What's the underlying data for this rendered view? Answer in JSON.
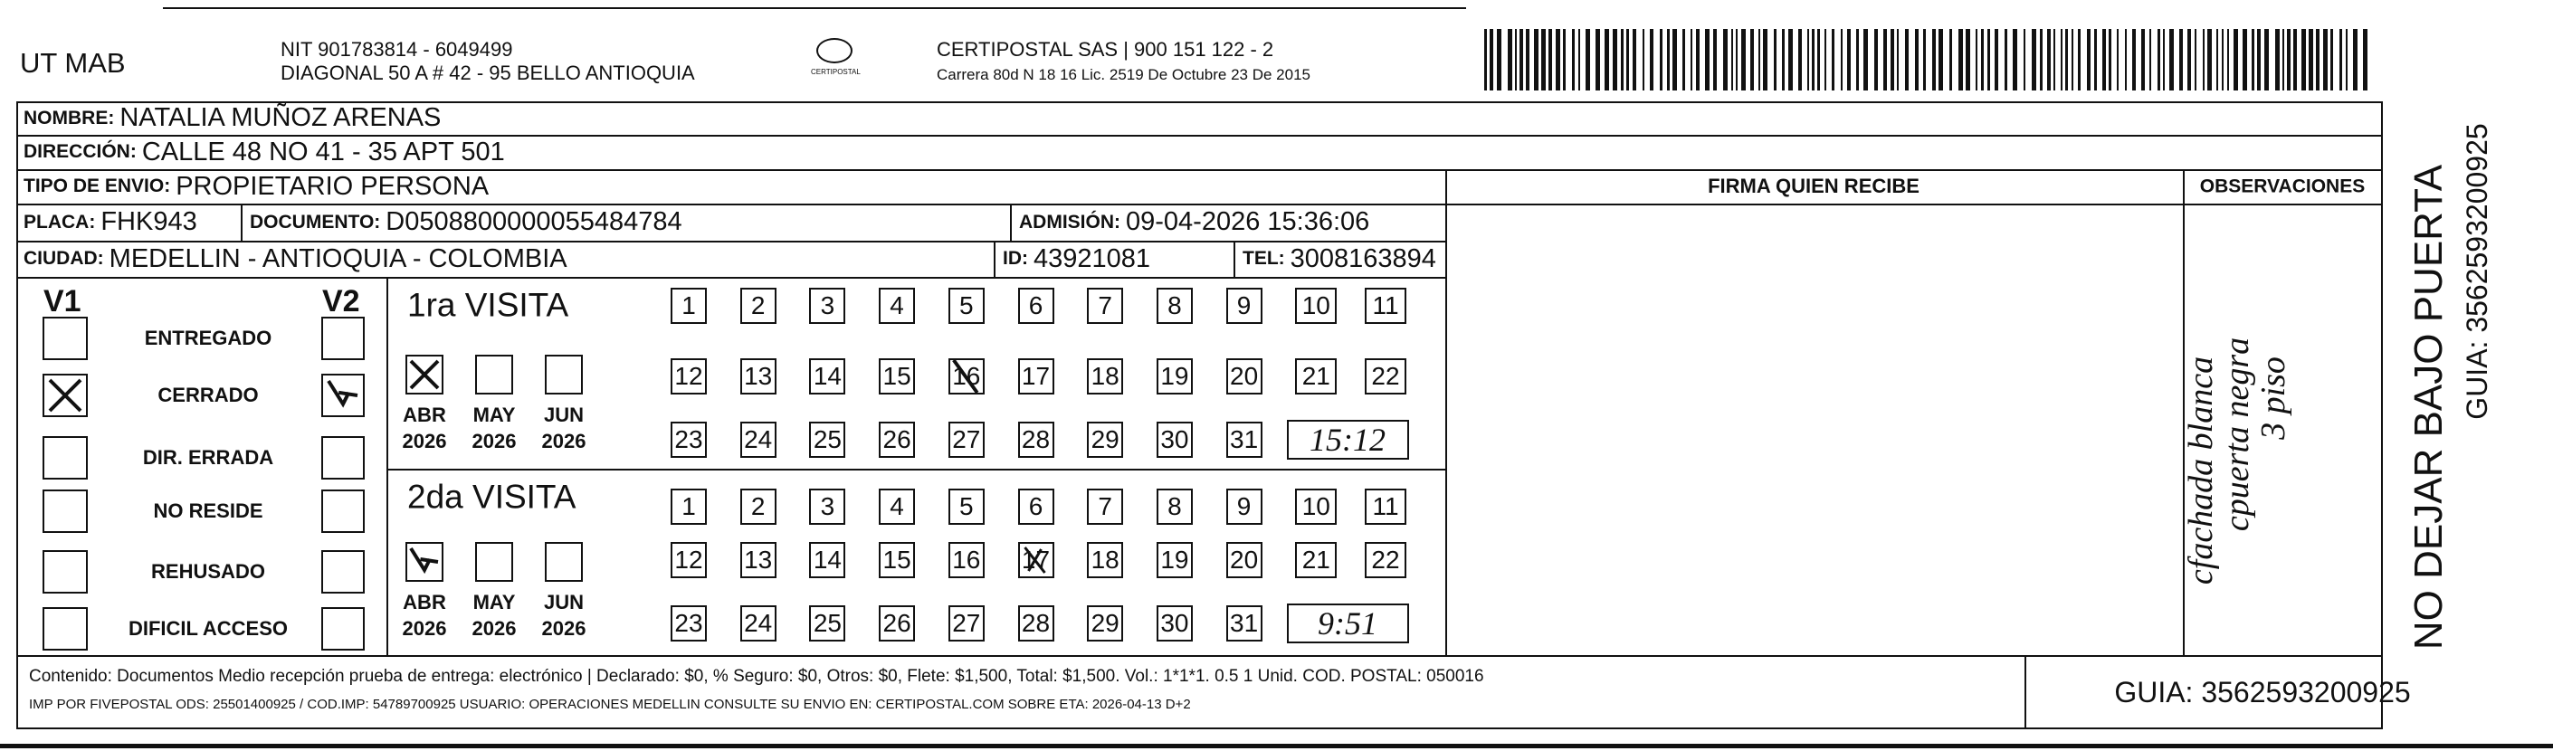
{
  "header": {
    "company": "UT MAB",
    "nit": "NIT 901783814 - 6049499",
    "address": "DIAGONAL 50 A # 42 - 95  BELLO  ANTIOQUIA",
    "logo": "CERTIPOSTAL",
    "carrier": "CERTIPOSTAL SAS | 900 151 122 - 2",
    "license": "Carrera 80d N 18 16  Lic. 2519 De Octubre 23 De 2015"
  },
  "fields": {
    "nombre": {
      "label": "NOMBRE:",
      "value": "NATALIA MUÑOZ ARENAS"
    },
    "direccion": {
      "label": "DIRECCIÓN:",
      "value": "CALLE 48 NO 41 - 35 APT 501"
    },
    "tipo": {
      "label": "TIPO DE ENVIO:",
      "value": "PROPIETARIO PERSONA"
    },
    "placa": {
      "label": "PLACA:",
      "value": "FHK943"
    },
    "documento": {
      "label": "DOCUMENTO:",
      "value": "D0508800000055484784"
    },
    "admision": {
      "label": "ADMISIÓN:",
      "value": "09-04-2026 15:36:06"
    },
    "ciudad": {
      "label": "CIUDAD:",
      "value": "MEDELLIN - ANTIOQUIA - COLOMBIA"
    },
    "id": {
      "label": "ID:",
      "value": "43921081"
    },
    "tel": {
      "label": "TEL:",
      "value": "3008163894"
    }
  },
  "columns": {
    "firma": "FIRMA QUIEN RECIBE",
    "observaciones": "OBSERVACIONES"
  },
  "status": {
    "v1": "V1",
    "v2": "V2",
    "options": [
      "ENTREGADO",
      "CERRADO",
      "DIR. ERRADA",
      "NO RESIDE",
      "REHUSADO",
      "DIFICIL ACCESO"
    ]
  },
  "visits": [
    {
      "title": "1ra VISITA",
      "months": [
        {
          "month": "ABR",
          "year": "2026"
        },
        {
          "month": "MAY",
          "year": "2026"
        },
        {
          "month": "JUN",
          "year": "2026"
        }
      ],
      "days": [
        1,
        2,
        3,
        4,
        5,
        6,
        7,
        8,
        9,
        10,
        11,
        12,
        13,
        14,
        15,
        16,
        17,
        18,
        19,
        20,
        21,
        22,
        23,
        24,
        25,
        26,
        27,
        28,
        29,
        30,
        31
      ],
      "time": "15:12"
    },
    {
      "title": "2da VISITA",
      "months": [
        {
          "month": "ABR",
          "year": "2026"
        },
        {
          "month": "MAY",
          "year": "2026"
        },
        {
          "month": "JUN",
          "year": "2026"
        }
      ],
      "days": [
        1,
        2,
        3,
        4,
        5,
        6,
        7,
        8,
        9,
        10,
        11,
        12,
        13,
        14,
        15,
        16,
        17,
        18,
        19,
        20,
        21,
        22,
        23,
        24,
        25,
        26,
        27,
        28,
        29,
        30,
        31
      ],
      "time": "9:51"
    }
  ],
  "observations": [
    "cfachada blanca",
    "cpuerta negra",
    "3 piso"
  ],
  "footer": {
    "content": "Contenido: Documentos Medio recepción prueba de entrega: electrónico | Declarado: $0, % Seguro: $0, Otros: $0, Flete: $1,500, Total: $1,500. Vol.: 1*1*1. 0.5  1 Unid. COD. POSTAL: 050016",
    "imp": "IMP POR FIVEPOSTAL ODS: 25501400925 / COD.IMP: 54789700925 USUARIO: OPERACIONES MEDELLIN CONSULTE SU ENVIO EN: CERTIPOSTAL.COM SOBRE ETA: 2026-04-13 D+2",
    "guia": "GUIA: 3562593200925"
  },
  "side": {
    "warning": "NO DEJAR BAJO PUERTA",
    "guia": "GUIA: 3562593200925"
  }
}
